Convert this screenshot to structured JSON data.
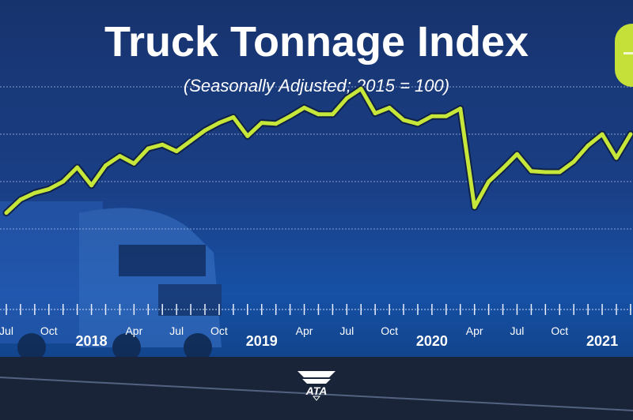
{
  "chart_data": {
    "type": "line",
    "title": "Truck Tonnage Index",
    "subtitle": "(Seasonally Adjusted; 2015 = 100)",
    "x": [
      "2017-07",
      "2017-08",
      "2017-09",
      "2017-10",
      "2017-11",
      "2017-12",
      "2018-01",
      "2018-02",
      "2018-03",
      "2018-04",
      "2018-05",
      "2018-06",
      "2018-07",
      "2018-08",
      "2018-09",
      "2018-10",
      "2018-11",
      "2018-12",
      "2019-01",
      "2019-02",
      "2019-03",
      "2019-04",
      "2019-05",
      "2019-06",
      "2019-07",
      "2019-08",
      "2019-09",
      "2019-10",
      "2019-11",
      "2019-12",
      "2020-01",
      "2020-02",
      "2020-03",
      "2020-04",
      "2020-05",
      "2020-06",
      "2020-07",
      "2020-08",
      "2020-09",
      "2020-10",
      "2020-11",
      "2020-12",
      "2021-01",
      "2021-02",
      "2021-03"
    ],
    "values": [
      106.7,
      108.1,
      108.8,
      109.2,
      110.0,
      111.5,
      109.6,
      111.7,
      112.7,
      111.9,
      113.5,
      113.9,
      113.2,
      114.3,
      115.4,
      116.2,
      116.8,
      114.8,
      116.2,
      116.1,
      116.9,
      117.8,
      117.1,
      117.1,
      118.8,
      119.8,
      117.2,
      117.8,
      116.5,
      116.1,
      116.9,
      116.9,
      117.7,
      107.3,
      110.0,
      111.4,
      112.9,
      111.1,
      111.0,
      111.0,
      112.1,
      113.8,
      115.0,
      112.5,
      115.0
    ],
    "ylim": [
      104,
      121
    ],
    "grid": true,
    "line_color": "#c6e63a",
    "tick_labels": [
      {
        "month": 0,
        "label": "Jul"
      },
      {
        "month": 3,
        "label": "Oct"
      },
      {
        "month": 6,
        "label": "2018",
        "year": true
      },
      {
        "month": 9,
        "label": "Apr"
      },
      {
        "month": 12,
        "label": "Jul"
      },
      {
        "month": 15,
        "label": "Oct"
      },
      {
        "month": 18,
        "label": "2019",
        "year": true
      },
      {
        "month": 21,
        "label": "Apr"
      },
      {
        "month": 24,
        "label": "Jul"
      },
      {
        "month": 27,
        "label": "Oct"
      },
      {
        "month": 30,
        "label": "2020",
        "year": true
      },
      {
        "month": 33,
        "label": "Apr"
      },
      {
        "month": 36,
        "label": "Jul"
      },
      {
        "month": 39,
        "label": "Oct"
      },
      {
        "month": 42,
        "label": "2021",
        "year": true
      }
    ]
  },
  "logo": {
    "text": "ATA"
  },
  "colors": {
    "background": "#1a3f86",
    "accent": "#c6e03a"
  }
}
